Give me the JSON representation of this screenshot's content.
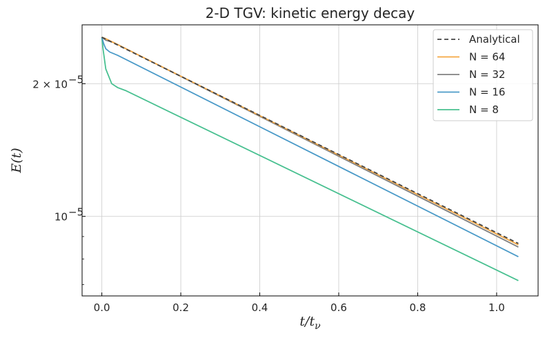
{
  "chart_data": {
    "type": "line",
    "title": "2-D TGV: kinetic energy decay",
    "xlabel": "t/t",
    "xlabel_sub": "ν",
    "ylabel": "E(t)",
    "xlim": [
      -0.05,
      1.105
    ],
    "ylim": [
      6.6e-06,
      2.72e-05
    ],
    "yscale": "log",
    "grid": true,
    "legend_position": "top-right",
    "x_ticks": [
      {
        "value": 0.0,
        "label": "0.0"
      },
      {
        "value": 0.2,
        "label": "0.2"
      },
      {
        "value": 0.4,
        "label": "0.4"
      },
      {
        "value": 0.6,
        "label": "0.6"
      },
      {
        "value": 0.8,
        "label": "0.8"
      },
      {
        "value": 1.0,
        "label": "1.0"
      }
    ],
    "y_ticks": [
      {
        "value": 2e-05,
        "label_base": "2 × 10",
        "label_exp": "−5"
      },
      {
        "value": 1e-05,
        "label_base": "10",
        "label_exp": "−5"
      }
    ],
    "y_minor_ticks": [
      7e-06,
      8e-06,
      9e-06,
      3e-05
    ],
    "series": [
      {
        "name": "Analytical",
        "color": "#444444",
        "dash": "6,4",
        "points": [
          [
            0.0,
            2.55e-05
          ],
          [
            1.055,
            8.68e-06
          ]
        ]
      },
      {
        "name": "N = 64",
        "color": "#f5a742",
        "dash": "",
        "points": [
          [
            0.0,
            2.55e-05
          ],
          [
            0.01,
            2.53e-05
          ],
          [
            1.055,
            8.62e-06
          ]
        ]
      },
      {
        "name": "N = 32",
        "color": "#808080",
        "dash": "",
        "points": [
          [
            0.0,
            2.55e-05
          ],
          [
            0.01,
            2.51e-05
          ],
          [
            0.03,
            2.48e-05
          ],
          [
            1.055,
            8.52e-06
          ]
        ]
      },
      {
        "name": "N = 16",
        "color": "#4a9ac8",
        "dash": "",
        "points": [
          [
            0.0,
            2.55e-05
          ],
          [
            0.005,
            2.46e-05
          ],
          [
            0.01,
            2.4e-05
          ],
          [
            0.02,
            2.36e-05
          ],
          [
            0.04,
            2.32e-05
          ],
          [
            1.055,
            8.1e-06
          ]
        ]
      },
      {
        "name": "N = 8",
        "color": "#48c090",
        "dash": "",
        "points": [
          [
            0.0,
            2.55e-05
          ],
          [
            0.003,
            2.4e-05
          ],
          [
            0.01,
            2.16e-05
          ],
          [
            0.025,
            2e-05
          ],
          [
            0.04,
            1.96e-05
          ],
          [
            0.06,
            1.93e-05
          ],
          [
            1.055,
            7.15e-06
          ]
        ]
      }
    ]
  }
}
